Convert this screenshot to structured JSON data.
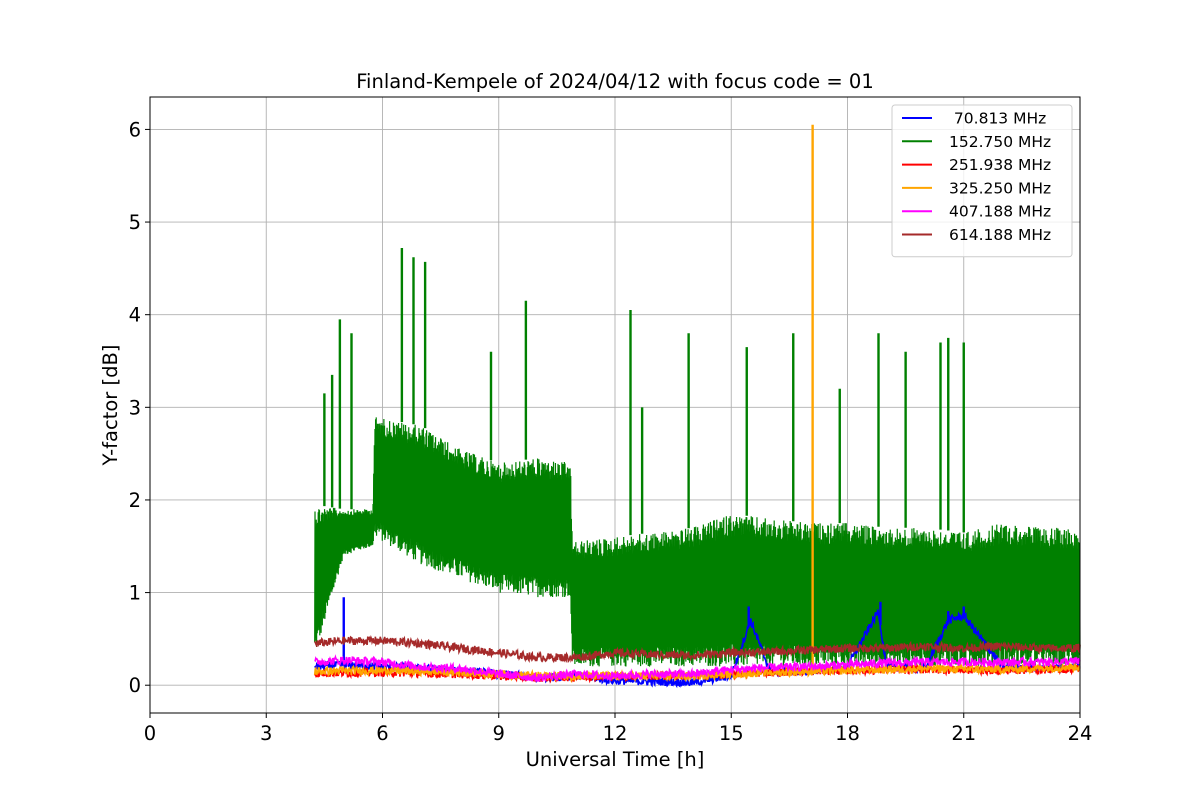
{
  "chart_data": {
    "type": "line",
    "title": "Finland-Kempele of 2024/04/12 with focus code = 01",
    "xlabel": "Universal Time [h]",
    "ylabel": "Y-factor [dB]",
    "xlim": [
      0,
      24
    ],
    "ylim": [
      -0.3,
      6.35
    ],
    "xticks": [
      0,
      3,
      6,
      9,
      12,
      15,
      18,
      21,
      24
    ],
    "yticks": [
      0,
      1,
      2,
      3,
      4,
      5,
      6
    ],
    "xtick_labels": [
      "0",
      "3",
      "6",
      "9",
      "12",
      "15",
      "18",
      "21",
      "24"
    ],
    "ytick_labels": [
      "0",
      "1",
      "2",
      "3",
      "4",
      "5",
      "6"
    ],
    "grid": true,
    "legend_position": "top-right",
    "series": [
      {
        "name": " 70.813 MHz",
        "color": "#0000ff",
        "x": [
          4.25,
          5.0,
          6.0,
          7.0,
          8.0,
          9.0,
          10.0,
          11.0,
          12.0,
          13.0,
          14.0,
          15.0,
          15.5,
          16.0,
          17.0,
          18.0,
          18.8,
          19.0,
          20.0,
          20.6,
          21.0,
          22.0,
          23.0,
          24.0
        ],
        "y": [
          0.2,
          0.22,
          0.2,
          0.18,
          0.15,
          0.12,
          0.08,
          0.1,
          0.05,
          0.04,
          0.03,
          0.1,
          0.7,
          0.15,
          0.15,
          0.2,
          0.8,
          0.2,
          0.18,
          0.7,
          0.75,
          0.2,
          0.18,
          0.2
        ],
        "spikes": [
          [
            5.0,
            0.95
          ],
          [
            15.45,
            0.85
          ],
          [
            18.85,
            0.9
          ],
          [
            20.6,
            0.8
          ],
          [
            21.0,
            0.85
          ]
        ]
      },
      {
        "name": "152.750 MHz",
        "color": "#008000",
        "x": [
          4.25,
          5.0,
          5.75,
          5.8,
          7.0,
          8.0,
          9.0,
          10.0,
          10.85,
          10.9,
          12.0,
          13.0,
          14.0,
          15.0,
          16.0,
          17.0,
          18.0,
          19.0,
          20.0,
          21.0,
          22.0,
          23.0,
          24.0
        ],
        "y_low": [
          0.3,
          1.4,
          1.5,
          1.6,
          1.3,
          1.15,
          1.0,
          0.95,
          0.95,
          0.2,
          0.2,
          0.2,
          0.2,
          0.2,
          0.2,
          0.2,
          0.2,
          0.2,
          0.2,
          0.2,
          0.2,
          0.2,
          0.2
        ],
        "y_high": [
          1.95,
          1.9,
          1.9,
          2.9,
          2.8,
          2.55,
          2.4,
          2.45,
          2.4,
          1.55,
          1.6,
          1.65,
          1.7,
          1.85,
          1.8,
          1.75,
          1.75,
          1.7,
          1.7,
          1.65,
          1.75,
          1.7,
          1.7
        ],
        "spikes": [
          [
            4.5,
            3.15
          ],
          [
            4.7,
            3.35
          ],
          [
            4.9,
            3.95
          ],
          [
            5.2,
            3.8
          ],
          [
            6.5,
            4.72
          ],
          [
            6.8,
            4.62
          ],
          [
            7.1,
            4.57
          ],
          [
            8.8,
            3.6
          ],
          [
            9.7,
            4.15
          ],
          [
            12.4,
            4.05
          ],
          [
            12.7,
            3.0
          ],
          [
            13.9,
            3.8
          ],
          [
            15.4,
            3.65
          ],
          [
            16.6,
            3.8
          ],
          [
            17.8,
            3.2
          ],
          [
            18.8,
            3.8
          ],
          [
            19.5,
            3.6
          ],
          [
            20.4,
            3.7
          ],
          [
            20.6,
            3.75
          ],
          [
            21.0,
            3.7
          ]
        ]
      },
      {
        "name": "251.938 MHz",
        "color": "#ff0000",
        "x": [
          4.25,
          6.0,
          8.0,
          9.0,
          10.0,
          12.0,
          14.0,
          16.0,
          18.0,
          20.0,
          22.0,
          24.0
        ],
        "y": [
          0.13,
          0.14,
          0.12,
          0.1,
          0.08,
          0.1,
          0.1,
          0.14,
          0.16,
          0.17,
          0.16,
          0.18
        ]
      },
      {
        "name": "325.250 MHz",
        "color": "#ffa500",
        "x": [
          4.25,
          6.0,
          8.0,
          10.0,
          12.0,
          14.0,
          16.0,
          17.0,
          18.0,
          20.0,
          22.0,
          24.0
        ],
        "y": [
          0.15,
          0.16,
          0.14,
          0.1,
          0.1,
          0.1,
          0.14,
          0.15,
          0.16,
          0.18,
          0.17,
          0.2
        ],
        "spikes": [
          [
            17.1,
            6.05
          ]
        ]
      },
      {
        "name": "407.188 MHz",
        "color": "#ff00ff",
        "x": [
          4.25,
          5.0,
          6.0,
          7.0,
          8.0,
          9.0,
          10.0,
          11.0,
          12.0,
          13.0,
          14.0,
          15.0,
          16.0,
          17.0,
          18.0,
          19.0,
          20.0,
          21.0,
          22.0,
          23.0,
          24.0
        ],
        "y": [
          0.25,
          0.27,
          0.25,
          0.2,
          0.18,
          0.12,
          0.08,
          0.12,
          0.1,
          0.12,
          0.12,
          0.17,
          0.19,
          0.2,
          0.22,
          0.24,
          0.25,
          0.25,
          0.25,
          0.25,
          0.26
        ]
      },
      {
        "name": "614.188 MHz",
        "color": "#a52a2a",
        "x": [
          4.25,
          5.0,
          6.0,
          7.0,
          8.0,
          9.0,
          10.0,
          11.0,
          12.0,
          13.0,
          14.0,
          15.0,
          16.0,
          17.0,
          18.0,
          19.0,
          20.0,
          21.0,
          22.0,
          23.0,
          24.0
        ],
        "y": [
          0.45,
          0.48,
          0.48,
          0.45,
          0.4,
          0.35,
          0.3,
          0.3,
          0.35,
          0.33,
          0.32,
          0.35,
          0.36,
          0.38,
          0.4,
          0.4,
          0.42,
          0.4,
          0.42,
          0.4,
          0.4
        ]
      }
    ]
  }
}
